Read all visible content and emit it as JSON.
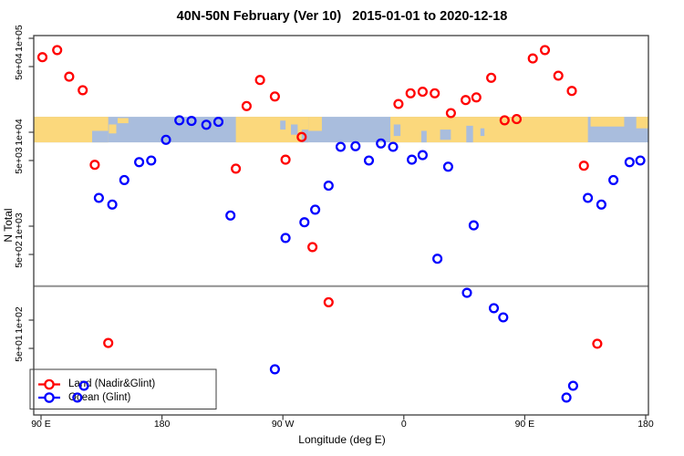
{
  "title": "40N-50N February (Ver 10)   2015-01-01 to 2020-12-18",
  "axes": {
    "x": {
      "label": "Longitude (deg E)",
      "ticks": [
        {
          "value": 90,
          "label": "90 E"
        },
        {
          "value": 180,
          "label": "180"
        },
        {
          "value": 270,
          "label": "90 W"
        },
        {
          "value": 360,
          "label": "0"
        },
        {
          "value": 450,
          "label": "90 E"
        },
        {
          "value": 540,
          "label": "180"
        }
      ]
    },
    "y": {
      "label": "N Total",
      "scale": "log",
      "ticks": [
        {
          "value": 100000,
          "label": "1e+05"
        },
        {
          "value": 50000,
          "label": "5e+04"
        },
        {
          "value": 10000,
          "label": "1e+04"
        },
        {
          "value": 5000,
          "label": "5e+03"
        },
        {
          "value": 1000,
          "label": "1e+03"
        },
        {
          "value": 500,
          "label": "5e+02"
        },
        {
          "value": 100,
          "label": "1e+02"
        },
        {
          "value": 50,
          "label": "5e+01"
        }
      ]
    }
  },
  "legend": {
    "items": [
      {
        "label": "Land (Nadir&Glint)",
        "color": "#ff0000"
      },
      {
        "label": "Ocean (Glint)",
        "color": "#0000ff"
      }
    ]
  },
  "chart_data": {
    "type": "scatter",
    "title": "40N-50N February (Ver 10)   2015-01-01 to 2020-12-18",
    "xlabel": "Longitude (deg E)",
    "ylabel": "N Total",
    "x_units": "longitude, wrapped axis from 90E eastward to 180 (90..540 deg)",
    "xlim": [
      84.5,
      542
    ],
    "ylim_log": [
      10,
      120000
    ],
    "reference_line_value": 230,
    "series": [
      {
        "name": "Land (Nadir&Glint)",
        "color": "#ff0000",
        "marker": "open-circle",
        "points": [
          [
            91,
            63000
          ],
          [
            102,
            75000
          ],
          [
            111,
            39000
          ],
          [
            121,
            28000
          ],
          [
            130,
            4500
          ],
          [
            140,
            57
          ],
          [
            235,
            4100
          ],
          [
            243,
            19000
          ],
          [
            253,
            36000
          ],
          [
            264,
            24000
          ],
          [
            272,
            5100
          ],
          [
            284,
            8900
          ],
          [
            292,
            600
          ],
          [
            304,
            155
          ],
          [
            356,
            20000
          ],
          [
            365,
            26000
          ],
          [
            374,
            27000
          ],
          [
            383,
            26000
          ],
          [
            395,
            16000
          ],
          [
            406,
            22000
          ],
          [
            414,
            23500
          ],
          [
            425,
            38000
          ],
          [
            435,
            13400
          ],
          [
            444,
            13800
          ],
          [
            456,
            61000
          ],
          [
            465,
            75000
          ],
          [
            475,
            40000
          ],
          [
            485,
            27500
          ],
          [
            494,
            4400
          ],
          [
            504,
            56
          ]
        ]
      },
      {
        "name": "Ocean (Glint)",
        "color": "#0000ff",
        "marker": "open-circle",
        "points": [
          [
            117,
            15
          ],
          [
            122,
            20
          ],
          [
            133,
            2000
          ],
          [
            143,
            1700
          ],
          [
            152,
            3100
          ],
          [
            163,
            4800
          ],
          [
            172,
            5000
          ],
          [
            183,
            8300
          ],
          [
            193,
            13400
          ],
          [
            202,
            13200
          ],
          [
            213,
            12000
          ],
          [
            222,
            12900
          ],
          [
            231,
            1300
          ],
          [
            264,
            30
          ],
          [
            272,
            750
          ],
          [
            286,
            1100
          ],
          [
            294,
            1500
          ],
          [
            304,
            2700
          ],
          [
            313,
            7000
          ],
          [
            324,
            7100
          ],
          [
            334,
            5000
          ],
          [
            343,
            7600
          ],
          [
            352,
            7000
          ],
          [
            366,
            5100
          ],
          [
            374,
            5700
          ],
          [
            385,
            450
          ],
          [
            393,
            4300
          ],
          [
            407,
            195
          ],
          [
            412,
            1020
          ],
          [
            427,
            134
          ],
          [
            434,
            107
          ],
          [
            481,
            15
          ],
          [
            486,
            20
          ],
          [
            497,
            2000
          ],
          [
            507,
            1700
          ],
          [
            516,
            3100
          ],
          [
            528,
            4800
          ],
          [
            536,
            5000
          ]
        ]
      }
    ],
    "map_band": {
      "description": "world map strip of the 40N-50N latitude band drawn across the plot at the 1e+04 level",
      "top_value": 14600,
      "bottom_value": 7800,
      "land_color": "#fbd87c",
      "ocean_color": "#a9bddd",
      "land_segments": [
        {
          "from": 84.5,
          "to": 140,
          "top": 0,
          "height": 1
        },
        {
          "from": 140.5,
          "to": 146,
          "top": 0.3,
          "height": 0.35
        },
        {
          "from": 147,
          "to": 155,
          "top": 0.05,
          "height": 0.2
        },
        {
          "from": 235,
          "to": 289,
          "top": 0,
          "height": 1
        },
        {
          "from": 289,
          "to": 299,
          "top": 0,
          "height": 0.55
        },
        {
          "from": 350,
          "to": 497,
          "top": 0,
          "height": 1
        },
        {
          "from": 499,
          "to": 524,
          "top": 0,
          "height": 0.38
        },
        {
          "from": 533,
          "to": 542,
          "top": 0,
          "height": 0.45
        }
      ],
      "ocean_cutouts": [
        {
          "from": 128,
          "to": 140,
          "top": 0.55,
          "height": 0.45
        },
        {
          "from": 268,
          "to": 272,
          "top": 0.15,
          "height": 0.35
        },
        {
          "from": 276,
          "to": 281,
          "top": 0.3,
          "height": 0.4
        },
        {
          "from": 284,
          "to": 289,
          "top": 0.5,
          "height": 0.5
        },
        {
          "from": 352.5,
          "to": 357.5,
          "top": 0.3,
          "height": 0.45
        },
        {
          "from": 373,
          "to": 377,
          "top": 0.55,
          "height": 0.45
        },
        {
          "from": 387,
          "to": 395,
          "top": 0.5,
          "height": 0.4
        },
        {
          "from": 406.5,
          "to": 411.5,
          "top": 0.35,
          "height": 0.65
        },
        {
          "from": 417,
          "to": 420,
          "top": 0.45,
          "height": 0.3
        }
      ]
    }
  }
}
